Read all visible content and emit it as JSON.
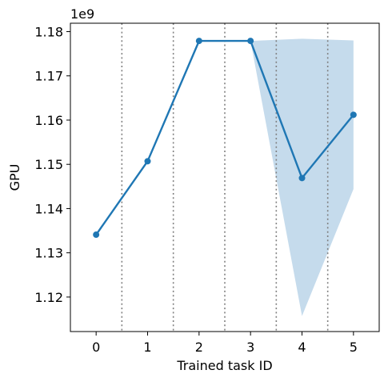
{
  "chart_data": {
    "type": "line",
    "title": "",
    "xlabel": "Trained task ID",
    "ylabel": "GPU",
    "y_offset_text": "1e9",
    "x": [
      0,
      1,
      2,
      3,
      4,
      5
    ],
    "x_tick_labels": [
      "0",
      "1",
      "2",
      "3",
      "4",
      "5"
    ],
    "xlim": [
      -0.5,
      5.5
    ],
    "y_ticks": [
      1.12,
      1.13,
      1.14,
      1.15,
      1.16,
      1.17,
      1.18
    ],
    "y_tick_labels": [
      "1.12",
      "1.13",
      "1.14",
      "1.15",
      "1.16",
      "1.17",
      "1.18"
    ],
    "ylim": [
      1.1122,
      1.1819
    ],
    "y_unit_scale": 1000000000,
    "grid": false,
    "series": [
      {
        "values": [
          1.1341,
          1.1507,
          1.1779,
          1.1779,
          1.1469,
          1.1612
        ],
        "band_lower": [
          1.1341,
          1.1507,
          1.1779,
          1.1779,
          1.1157,
          1.1444
        ],
        "band_upper": [
          1.1341,
          1.1507,
          1.1779,
          1.1779,
          1.1784,
          1.178
        ],
        "color": "#1f77b4",
        "band_color": "#c5dbec"
      }
    ],
    "vlines": {
      "x": [
        0.5,
        1.5,
        2.5,
        3.5,
        4.5
      ],
      "style": "dotted",
      "color": "#808080"
    }
  }
}
